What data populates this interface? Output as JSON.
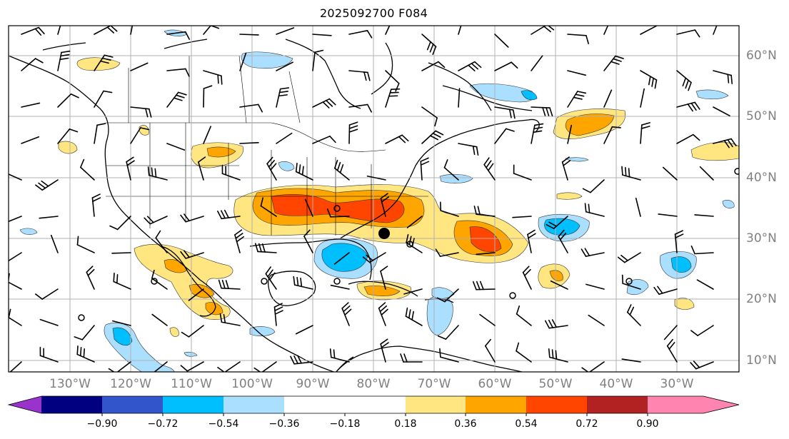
{
  "title": "2025092700 F084",
  "lat_labels": [
    "60°N",
    "50°N",
    "40°N",
    "30°N",
    "20°N",
    "10°N"
  ],
  "lon_labels": [
    "130°W",
    "120°W",
    "110°W",
    "100°W",
    "90°W",
    "80°W",
    "70°W",
    "60°W",
    "50°W",
    "40°W",
    "30°W"
  ],
  "colorbar": {
    "ticks": [
      "−0.90",
      "−0.72",
      "−0.54",
      "−0.36",
      "−0.18",
      "0.18",
      "0.36",
      "0.54",
      "0.72",
      "0.90"
    ],
    "colors": [
      "#9933cc",
      "#000080",
      "#3355cc",
      "#00bfff",
      "#aadfff",
      "#ffffff",
      "#ffe680",
      "#ffa500",
      "#ff4500",
      "#b22222",
      "#ff85b0"
    ]
  },
  "colors": {
    "map_border": "#000000",
    "gridlines": "#b0b0b0",
    "axis_label": "#808080"
  }
}
